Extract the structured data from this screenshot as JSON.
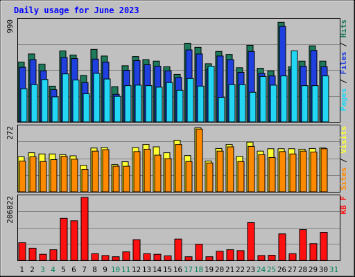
{
  "chart_data": [
    {
      "type": "bar",
      "title": "Daily usage for June 2023",
      "categories": [
        "1",
        "2",
        "3",
        "4",
        "5",
        "6",
        "7",
        "8",
        "9",
        "10",
        "11",
        "12",
        "13",
        "14",
        "15",
        "16",
        "17",
        "18",
        "19",
        "20",
        "21",
        "22",
        "23",
        "24",
        "25",
        "26",
        "27",
        "28",
        "29",
        "30",
        "31"
      ],
      "weekend_days": [
        "3",
        "4",
        "10",
        "11",
        "17",
        "18",
        "24",
        "25",
        "31"
      ],
      "ylim": [
        0,
        990
      ],
      "max_label": "990",
      "legend": [
        "Pages",
        "Files",
        "Hits"
      ],
      "series": [
        {
          "name": "Hits",
          "color": "#1d7a5a",
          "values": [
            585,
            665,
            565,
            350,
            695,
            655,
            455,
            710,
            645,
            345,
            550,
            640,
            610,
            595,
            540,
            465,
            770,
            730,
            570,
            690,
            660,
            530,
            750,
            525,
            500,
            975,
            540,
            595,
            745,
            595,
            null
          ]
        },
        {
          "name": "Files",
          "color": "#1f3fdf",
          "values": [
            535,
            610,
            500,
            315,
            630,
            620,
            385,
            615,
            585,
            270,
            505,
            600,
            560,
            545,
            500,
            435,
            705,
            665,
            515,
            645,
            610,
            485,
            690,
            475,
            450,
            935,
            515,
            545,
            700,
            540,
            null
          ]
        },
        {
          "name": "Pages",
          "color": "#22d6f4",
          "values": [
            325,
            365,
            415,
            245,
            470,
            410,
            275,
            475,
            420,
            250,
            355,
            360,
            355,
            340,
            385,
            310,
            425,
            350,
            545,
            240,
            365,
            365,
            290,
            445,
            360,
            450,
            695,
            355,
            355,
            450,
            null
          ]
        }
      ]
    },
    {
      "type": "bar",
      "categories": [
        "1",
        "2",
        "3",
        "4",
        "5",
        "6",
        "7",
        "8",
        "9",
        "10",
        "11",
        "12",
        "13",
        "14",
        "15",
        "16",
        "17",
        "18",
        "19",
        "20",
        "21",
        "22",
        "23",
        "24",
        "25",
        "26",
        "27",
        "28",
        "29",
        "30",
        "31"
      ],
      "ylim": [
        0,
        272
      ],
      "max_label": "272",
      "legend": [
        "Sites",
        "Visits"
      ],
      "series": [
        {
          "name": "Visits",
          "color": "#ffff33",
          "values": [
            148,
            165,
            160,
            160,
            157,
            152,
            112,
            185,
            187,
            115,
            127,
            187,
            200,
            190,
            165,
            218,
            153,
            270,
            130,
            183,
            200,
            150,
            210,
            172,
            182,
            182,
            182,
            180,
            183,
            185,
            null
          ]
        },
        {
          "name": "Sites",
          "color": "#ff8a00",
          "values": [
            130,
            148,
            128,
            136,
            150,
            138,
            95,
            172,
            178,
            108,
            108,
            170,
            180,
            155,
            140,
            200,
            128,
            265,
            122,
            172,
            190,
            128,
            192,
            157,
            145,
            170,
            160,
            172,
            168,
            182,
            null
          ]
        }
      ]
    },
    {
      "type": "bar",
      "categories": [
        "1",
        "2",
        "3",
        "4",
        "5",
        "6",
        "7",
        "8",
        "9",
        "10",
        "11",
        "12",
        "13",
        "14",
        "15",
        "16",
        "17",
        "18",
        "19",
        "20",
        "21",
        "22",
        "23",
        "24",
        "25",
        "26",
        "27",
        "28",
        "29",
        "30",
        "31"
      ],
      "ylim": [
        0,
        206822
      ],
      "max_label": "206822",
      "legend": [
        "KB F"
      ],
      "series": [
        {
          "name": "KB F",
          "color": "#ff1010",
          "values": [
            58000,
            40000,
            20000,
            35000,
            138000,
            130000,
            206800,
            22000,
            16000,
            12000,
            28000,
            68000,
            22000,
            20000,
            15000,
            70000,
            12000,
            53000,
            12000,
            30000,
            35000,
            32000,
            124000,
            16000,
            17000,
            87000,
            22000,
            101000,
            55000,
            92000,
            null
          ]
        }
      ]
    }
  ],
  "colors": {
    "background": "#c0c0c0",
    "plot_background": "#c0c0c0",
    "title": "#0000ff",
    "weekday_label": "#000000",
    "weekend_label": "#00805c",
    "gridline": "#808080",
    "border": "#000000"
  }
}
